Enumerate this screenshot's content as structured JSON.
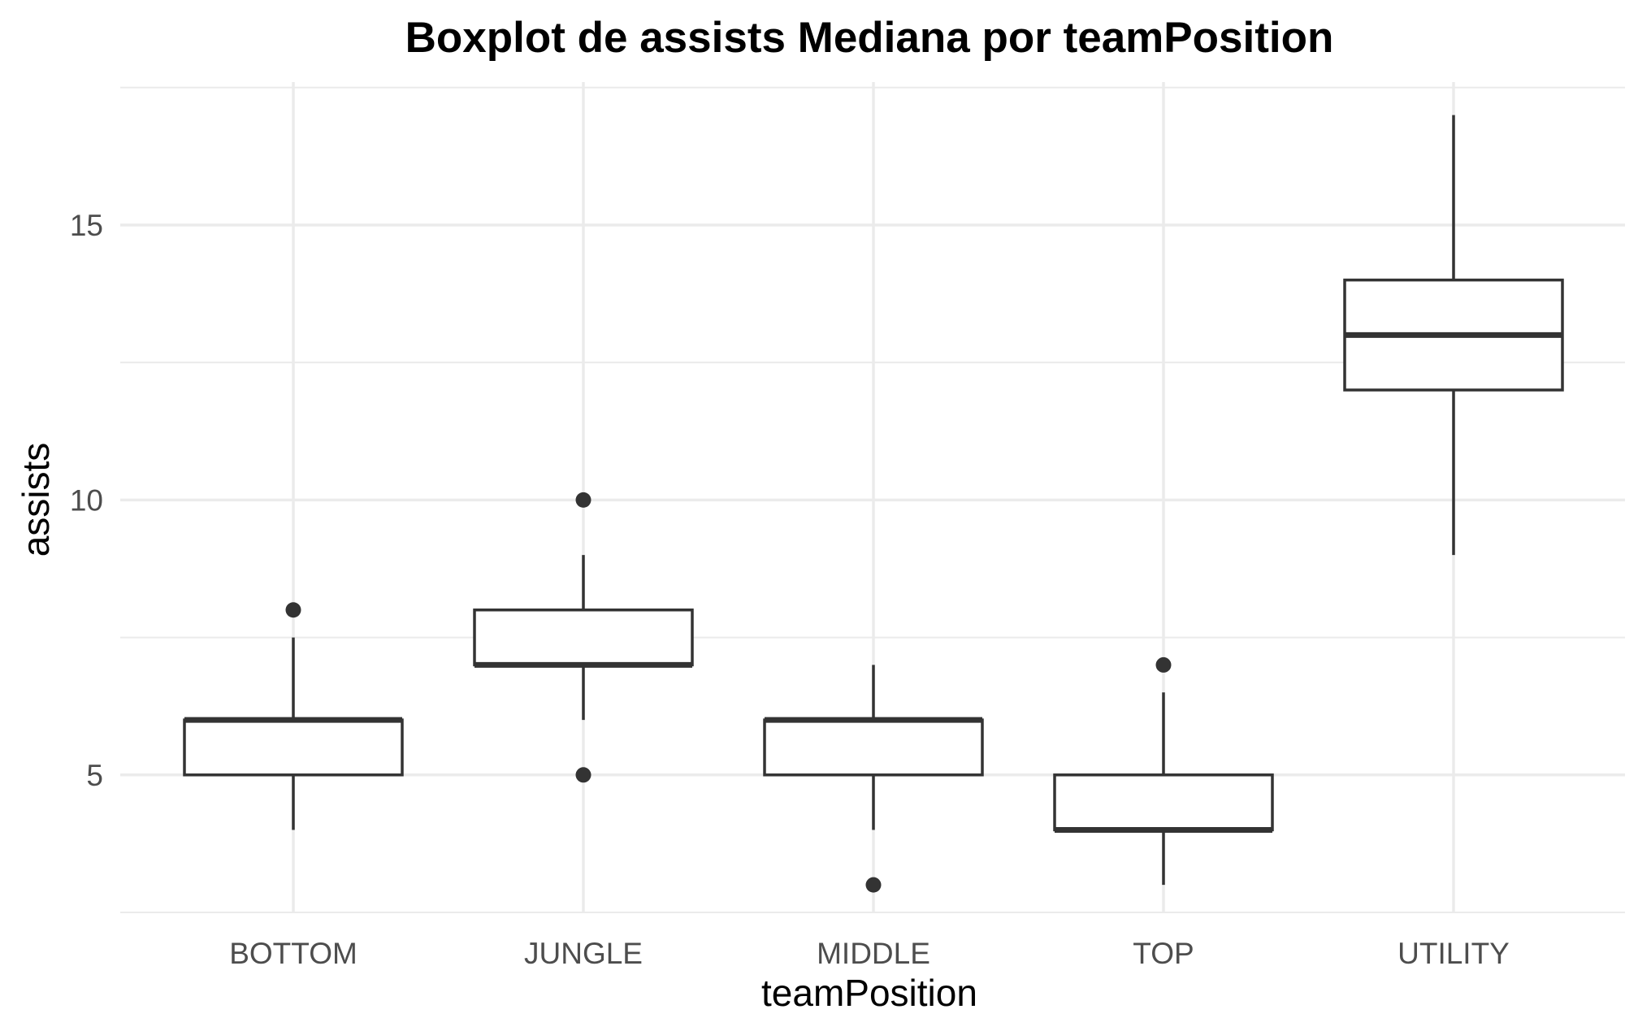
{
  "chart_data": {
    "type": "boxplot",
    "title": "Boxplot de assists Mediana por teamPosition",
    "xlabel": "teamPosition",
    "ylabel": "assists",
    "ylim": [
      2.5,
      17.6
    ],
    "yticks": [
      5,
      10,
      15
    ],
    "ytick_labels": [
      "5",
      "10",
      "15"
    ],
    "grid": true,
    "categories": [
      "BOTTOM",
      "JUNGLE",
      "MIDDLE",
      "TOP",
      "UTILITY"
    ],
    "boxes": [
      {
        "category": "BOTTOM",
        "whisker_low": 4,
        "q1": 5,
        "median": 6,
        "q3": 6,
        "whisker_high": 7.5,
        "outliers": [
          8
        ]
      },
      {
        "category": "JUNGLE",
        "whisker_low": 6,
        "q1": 7,
        "median": 7,
        "q3": 8,
        "whisker_high": 9,
        "outliers": [
          10,
          5
        ]
      },
      {
        "category": "MIDDLE",
        "whisker_low": 4,
        "q1": 5,
        "median": 6,
        "q3": 6,
        "whisker_high": 7,
        "outliers": [
          3
        ]
      },
      {
        "category": "TOP",
        "whisker_low": 3,
        "q1": 4,
        "median": 4,
        "q3": 5,
        "whisker_high": 6.5,
        "outliers": [
          7
        ]
      },
      {
        "category": "UTILITY",
        "whisker_low": 9,
        "q1": 12,
        "median": 13,
        "q3": 14,
        "whisker_high": 17,
        "outliers": []
      }
    ],
    "colors": {
      "box_stroke": "#333333",
      "box_fill": "#ffffff",
      "grid": "#ebebeb",
      "background": "#ffffff"
    }
  }
}
